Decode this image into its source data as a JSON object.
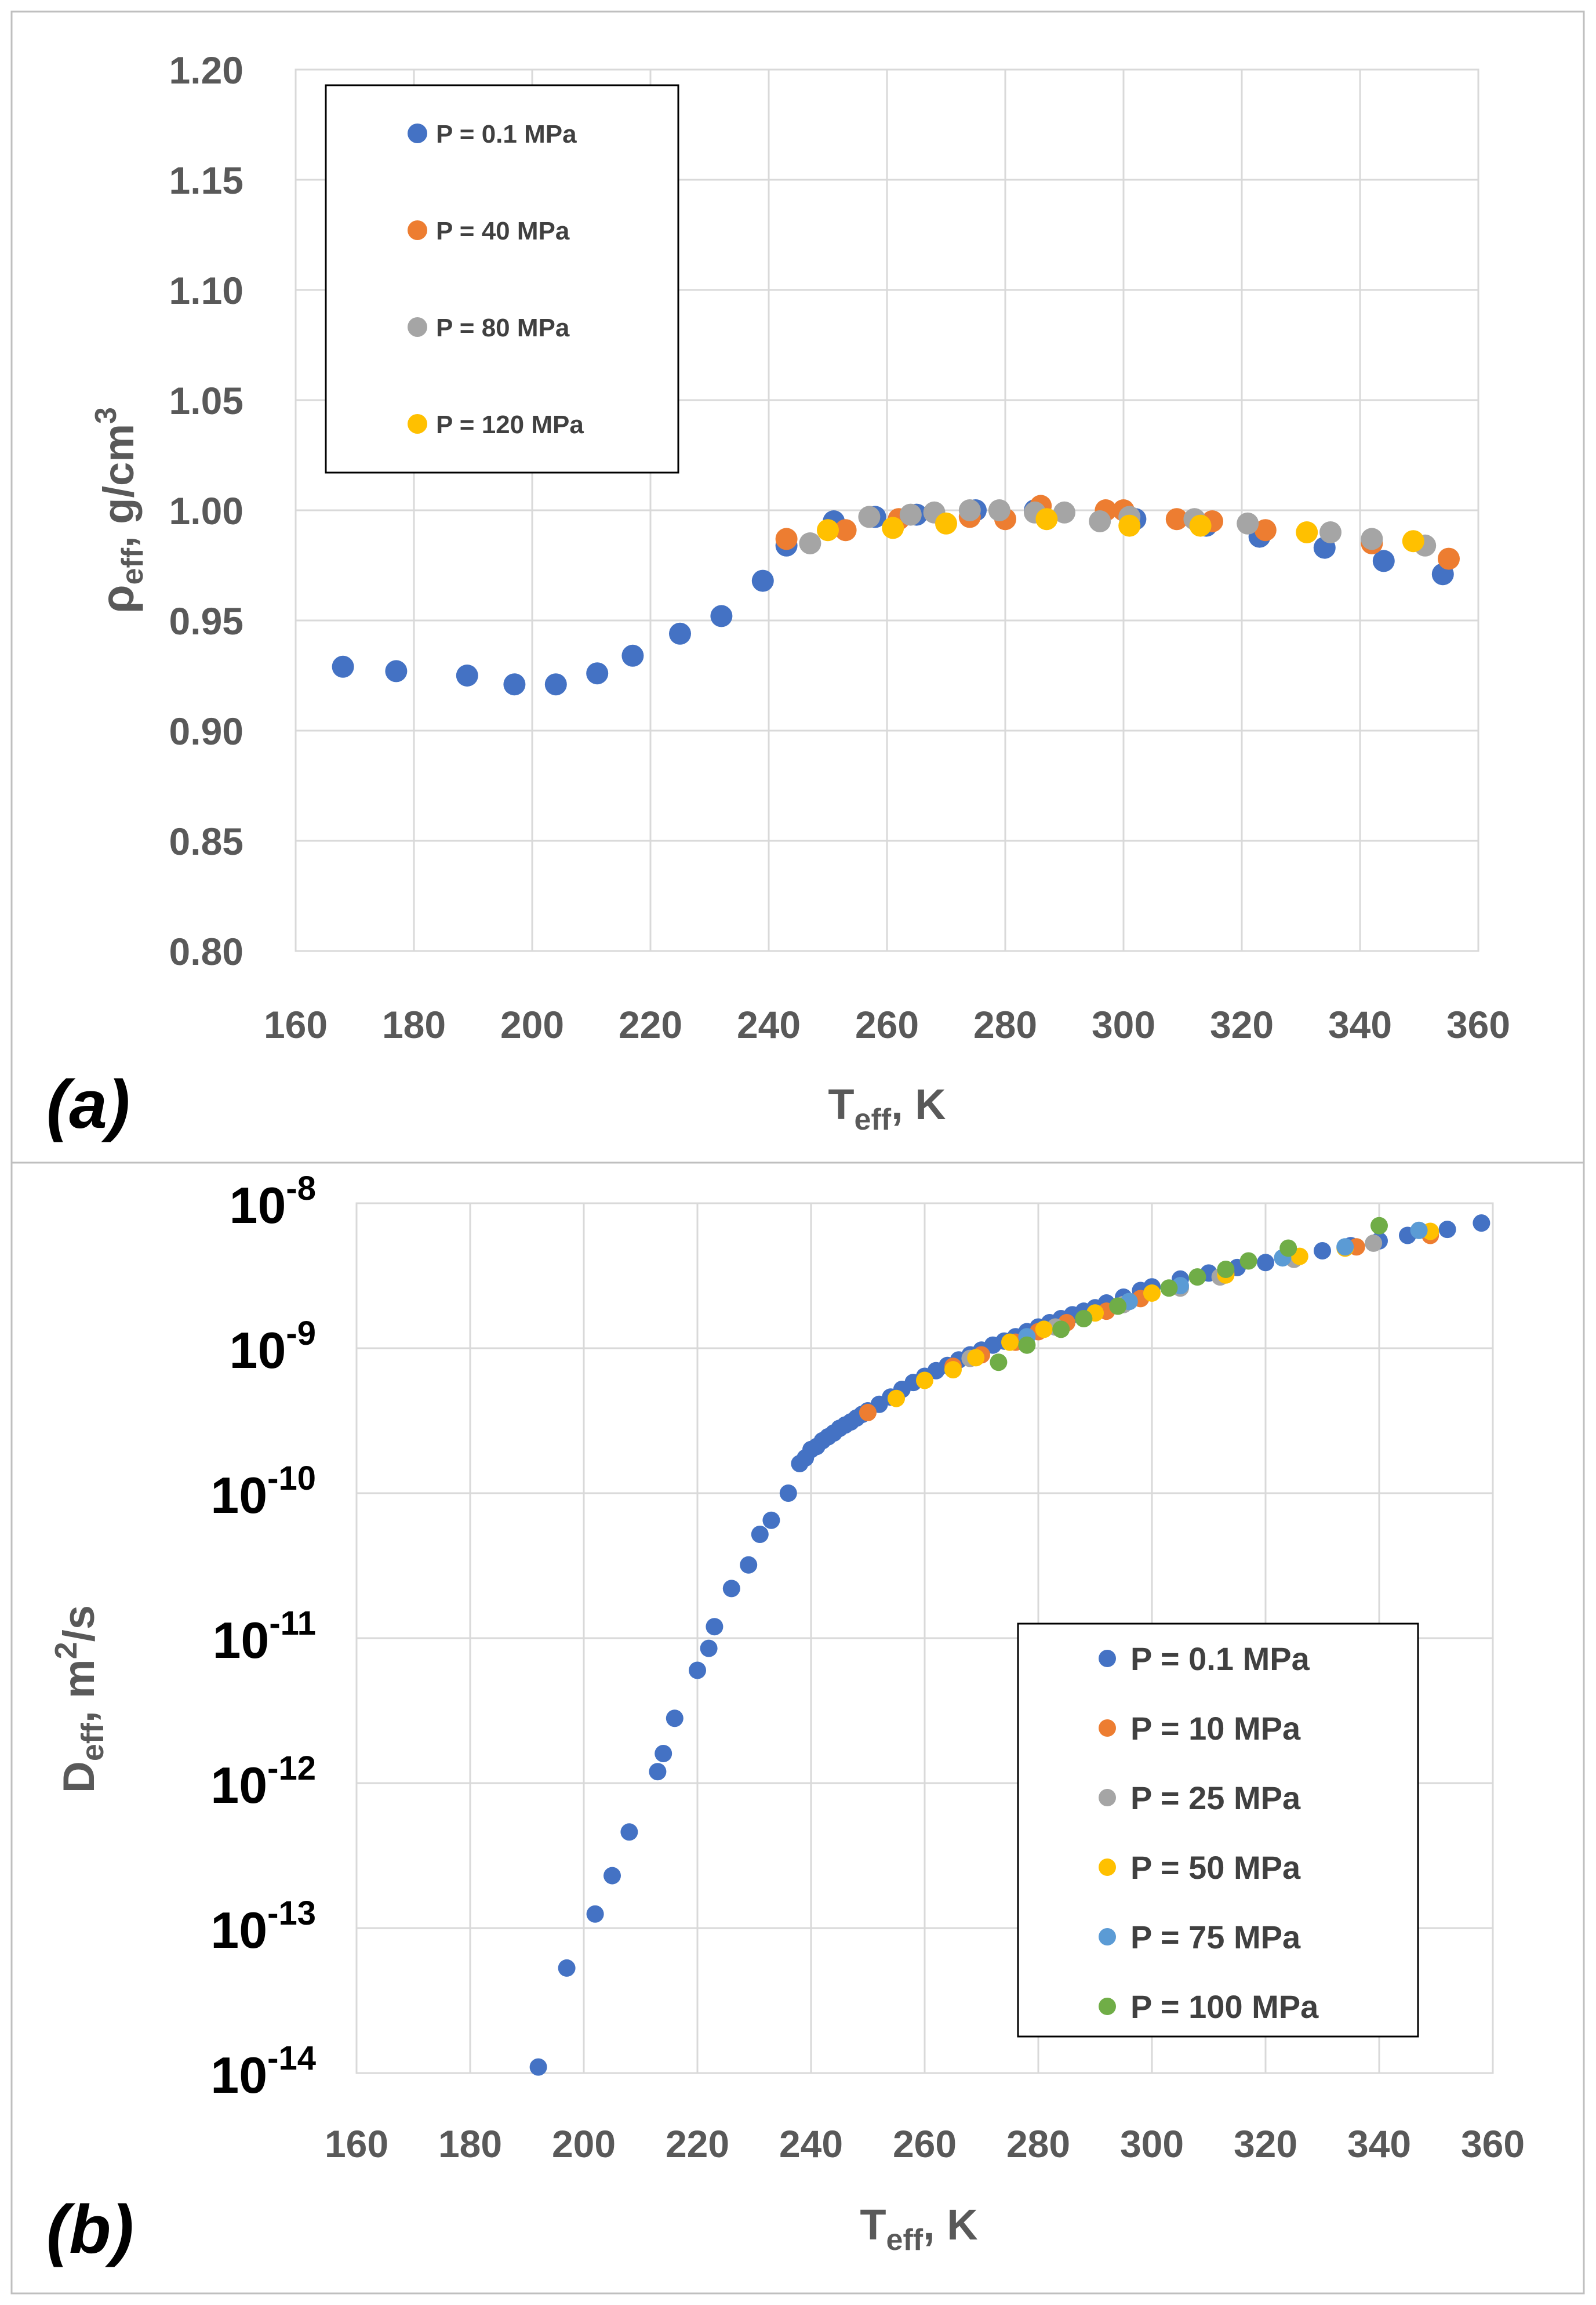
{
  "colors": {
    "s0": "#4472c4",
    "s1": "#ed7d31",
    "s2": "#a5a5a5",
    "s3": "#ffc000",
    "s4": "#5b9bd5",
    "s5": "#70ad47",
    "grid": "#d9d9d9",
    "text": "#595959"
  },
  "chart_data": [
    {
      "id": "a",
      "type": "scatter",
      "panel_label": "(a)",
      "xlabel": {
        "main": "T",
        "sub": "eff",
        "rest": ", K"
      },
      "ylabel": {
        "main": "ρ",
        "sub": "eff",
        "rest": ", g/cm",
        "sup": "3"
      },
      "xlim": [
        160,
        360
      ],
      "ylim": [
        0.8,
        1.2
      ],
      "xticks": [
        "160",
        "180",
        "200",
        "220",
        "240",
        "260",
        "280",
        "300",
        "320",
        "340",
        "360"
      ],
      "yticks": [
        "0.80",
        "0.85",
        "0.90",
        "0.95",
        "1.00",
        "1.05",
        "1.10",
        "1.15",
        "1.20"
      ],
      "grid": true,
      "legend_position": "top-left",
      "series": [
        {
          "name": "P = 0.1 MPa",
          "x": [
            168,
            177,
            189,
            197,
            204,
            211,
            217,
            225,
            232,
            239,
            243,
            251,
            258,
            265,
            275,
            285,
            302,
            314,
            323,
            334,
            344,
            354
          ],
          "y": [
            0.929,
            0.927,
            0.925,
            0.921,
            0.921,
            0.926,
            0.934,
            0.944,
            0.952,
            0.968,
            0.984,
            0.995,
            0.997,
            0.998,
            1.0,
            1.0,
            0.996,
            0.993,
            0.988,
            0.983,
            0.977,
            0.971
          ]
        },
        {
          "name": "P = 40 MPa",
          "x": [
            243,
            253,
            262,
            274,
            280,
            286,
            297,
            300,
            309,
            315,
            324,
            342,
            355
          ],
          "y": [
            0.987,
            0.991,
            0.996,
            0.997,
            0.996,
            1.002,
            1.0,
            1.0,
            0.996,
            0.995,
            0.991,
            0.985,
            0.978
          ]
        },
        {
          "name": "P = 80 MPa",
          "x": [
            247,
            257,
            264,
            268,
            274,
            279,
            285,
            290,
            296,
            301,
            312,
            321,
            335,
            342,
            351
          ],
          "y": [
            0.985,
            0.997,
            0.998,
            0.999,
            1.0,
            1.0,
            0.999,
            0.999,
            0.995,
            0.997,
            0.996,
            0.994,
            0.99,
            0.987,
            0.984
          ]
        },
        {
          "name": "P = 120 MPa",
          "x": [
            250,
            261,
            270,
            287,
            301,
            313,
            331,
            349
          ],
          "y": [
            0.991,
            0.992,
            0.994,
            0.996,
            0.993,
            0.993,
            0.99,
            0.986
          ]
        }
      ]
    },
    {
      "id": "b",
      "type": "scatter",
      "panel_label": "(b)",
      "xlabel": {
        "main": "T",
        "sub": "eff",
        "rest": ", K"
      },
      "ylabel": {
        "main": "D",
        "sub": "eff",
        "rest": ", m",
        "sup": "2",
        "tail": "/s"
      },
      "xlim": [
        160,
        360
      ],
      "yscale": "log",
      "ylim": [
        1e-14,
        1e-08
      ],
      "xticks": [
        "160",
        "180",
        "200",
        "220",
        "240",
        "260",
        "280",
        "300",
        "320",
        "340",
        "360"
      ],
      "ytick_base": "10",
      "ytick_exponents": [
        "-14",
        "-13",
        "-12",
        "-11",
        "-10",
        "-9",
        "-8"
      ],
      "grid": true,
      "legend_position": "bottom-right",
      "series": [
        {
          "name": "P = 0.1 MPa",
          "x": [
            192,
            197,
            202,
            205,
            208,
            213,
            214,
            216,
            220,
            222,
            223,
            226,
            229,
            231,
            233,
            236,
            238,
            239,
            240,
            241,
            242,
            243,
            244,
            245,
            246,
            247,
            248,
            249,
            250,
            252,
            254,
            256,
            258,
            260,
            262,
            264,
            266,
            268,
            270,
            272,
            274,
            276,
            278,
            280,
            282,
            284,
            286,
            288,
            290,
            292,
            295,
            298,
            300,
            305,
            310,
            315,
            320,
            325,
            330,
            335,
            340,
            345,
            352,
            358
          ],
          "y": [
            1.1e-14,
            5.3e-14,
            1.25e-13,
            2.3e-13,
            4.6e-13,
            1.2e-12,
            1.6e-12,
            2.8e-12,
            6e-12,
            8.5e-12,
            1.2e-11,
            2.2e-11,
            3.2e-11,
            5.2e-11,
            6.5e-11,
            1e-10,
            1.6e-10,
            1.75e-10,
            2e-10,
            2.1e-10,
            2.3e-10,
            2.45e-10,
            2.6e-10,
            2.8e-10,
            2.95e-10,
            3.1e-10,
            3.3e-10,
            3.5e-10,
            3.7e-10,
            4.1e-10,
            4.6e-10,
            5.2e-10,
            5.8e-10,
            6.4e-10,
            7e-10,
            7.6e-10,
            8.3e-10,
            9e-10,
            9.7e-10,
            1.05e-09,
            1.12e-09,
            1.2e-09,
            1.3e-09,
            1.4e-09,
            1.5e-09,
            1.6e-09,
            1.7e-09,
            1.8e-09,
            1.9e-09,
            2.05e-09,
            2.25e-09,
            2.5e-09,
            2.65e-09,
            3e-09,
            3.3e-09,
            3.6e-09,
            3.9e-09,
            4.3e-09,
            4.7e-09,
            5.1e-09,
            5.5e-09,
            6e-09,
            6.6e-09,
            7.3e-09
          ]
        },
        {
          "name": "P = 10 MPa",
          "x": [
            250,
            265,
            270,
            276,
            280,
            285,
            292,
            298,
            313,
            336,
            349
          ],
          "y": [
            3.6e-10,
            7.5e-10,
            9e-10,
            1.1e-09,
            1.3e-09,
            1.5e-09,
            1.8e-09,
            2.2e-09,
            3.3e-09,
            5e-09,
            6e-09
          ]
        },
        {
          "name": "P = 25 MPa",
          "x": [
            268,
            283,
            295,
            305,
            312,
            325,
            339
          ],
          "y": [
            8.5e-10,
            1.4e-09,
            2e-09,
            2.6e-09,
            3.1e-09,
            4.1e-09,
            5.3e-09
          ]
        },
        {
          "name": "P = 50 MPa",
          "x": [
            255,
            260,
            265,
            269,
            275,
            281,
            290,
            300,
            313,
            326,
            334,
            349
          ],
          "y": [
            4.5e-10,
            6e-10,
            7.1e-10,
            8.6e-10,
            1.1e-09,
            1.35e-09,
            1.75e-09,
            2.4e-09,
            3.2e-09,
            4.3e-09,
            4.9e-09,
            6.4e-09
          ]
        },
        {
          "name": "P = 75 MPa",
          "x": [
            278,
            296,
            305,
            323,
            334,
            347
          ],
          "y": [
            1.2e-09,
            2.1e-09,
            2.7e-09,
            4.2e-09,
            5e-09,
            6.5e-09
          ]
        },
        {
          "name": "P = 100 MPa",
          "x": [
            273,
            278,
            284,
            288,
            294,
            303,
            308,
            313,
            317,
            324,
            340
          ],
          "y": [
            8e-10,
            1.05e-09,
            1.35e-09,
            1.6e-09,
            1.95e-09,
            2.6e-09,
            3.1e-09,
            3.5e-09,
            4e-09,
            4.9e-09,
            7e-09
          ]
        }
      ]
    }
  ]
}
